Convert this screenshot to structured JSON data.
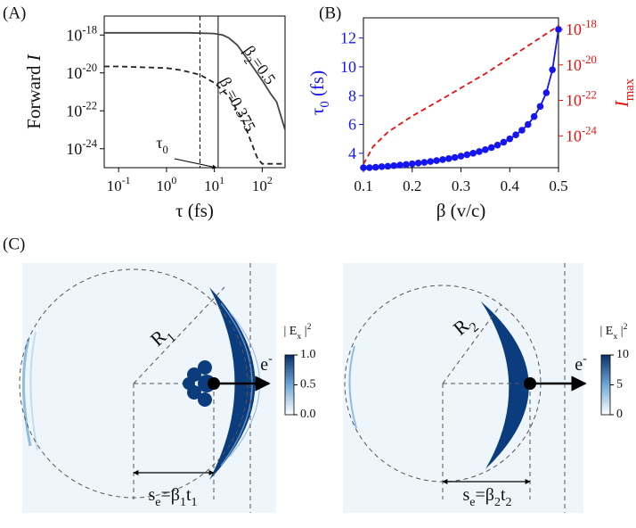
{
  "chart_data": [
    {
      "type": "line",
      "panel_label": "(A)",
      "xlabel": {
        "parts": [
          {
            "text": "τ (fs)"
          }
        ]
      },
      "ylabel": {
        "parts": [
          {
            "text": "Forward "
          },
          {
            "text": "I",
            "pos": "italic"
          }
        ]
      },
      "xscale": "log",
      "yscale": "log",
      "xlim": [
        0.05,
        300
      ],
      "ylim": [
        1e-25,
        1e-17
      ],
      "xticks": [
        {
          "value": 0.1,
          "label": "10-1"
        },
        {
          "value": 1,
          "label": "100"
        },
        {
          "value": 10,
          "label": "101"
        },
        {
          "value": 100,
          "label": "102"
        }
      ],
      "yticks": [
        {
          "value": 1e-24,
          "label": "10-24"
        },
        {
          "value": 1e-22,
          "label": "10-22"
        },
        {
          "value": 1e-20,
          "label": "10-20"
        },
        {
          "value": 1e-18,
          "label": "10-18"
        }
      ],
      "series": [
        {
          "color": "#444444",
          "dash": "solid",
          "x": [
            0.05,
            0.1,
            1,
            3,
            10,
            15,
            20,
            30,
            50,
            100,
            150,
            200,
            300
          ],
          "values": [
            1.3e-18,
            1.3e-18,
            1.3e-18,
            1.3e-18,
            1.2e-18,
            1e-18,
            7e-19,
            3e-19,
            5e-20,
            4e-21,
            8e-22,
            3e-22,
            1e-23
          ]
        },
        {
          "color": "#222222",
          "dash": "dashed",
          "x": [
            0.05,
            0.1,
            1,
            2,
            5,
            10,
            20,
            40,
            60,
            80,
            100,
            150,
            300
          ],
          "values": [
            2.2e-20,
            2.2e-20,
            1.8e-20,
            1.4e-20,
            8e-21,
            3e-21,
            6e-22,
            3e-23,
            2e-24,
            3e-25,
            1.6e-25,
            1.6e-25,
            1.6e-25
          ]
        }
      ],
      "vlines": [
        {
          "x": 5,
          "dash": "dashed"
        },
        {
          "x": 12,
          "dash": "solid"
        }
      ],
      "annotations": [
        {
          "parts": [
            {
              "text": "β"
            },
            {
              "text": "2",
              "pos": "sub"
            },
            {
              "text": "=0.5"
            }
          ]
        },
        {
          "parts": [
            {
              "text": "β"
            },
            {
              "text": "1",
              "pos": "sub"
            },
            {
              "text": "=0.375"
            }
          ]
        },
        {
          "parts": [
            {
              "text": "τ"
            },
            {
              "text": "0",
              "pos": "sub"
            }
          ]
        }
      ]
    },
    {
      "type": "line",
      "panel_label": "(B)",
      "xlabel": {
        "parts": [
          {
            "text": "β (v/c)"
          }
        ]
      },
      "ylabel": {
        "parts": [
          {
            "text": "τ"
          },
          {
            "text": "0",
            "pos": "sub"
          },
          {
            "text": " (fs)"
          }
        ]
      },
      "y2label": {
        "parts": [
          {
            "text": "I",
            "pos": "italic"
          },
          {
            "text": "max",
            "pos": "sub"
          }
        ]
      },
      "xscale": "linear",
      "yscale": "linear",
      "y2scale": "log",
      "ycolor": "#1515f0",
      "y2color": "#e81010",
      "xlim": [
        0.1,
        0.5
      ],
      "ylim": [
        3,
        13.4
      ],
      "y2lim": [
        1.6e-26,
        4.5e-18
      ],
      "xticks": [
        0.1,
        0.2,
        0.3,
        0.4,
        0.5
      ],
      "yticks": [
        4,
        6,
        8,
        10,
        12
      ],
      "y2ticks": [
        {
          "value": 1e-24,
          "label": "10-24"
        },
        {
          "value": 1e-22,
          "label": "10-22"
        },
        {
          "value": 1e-20,
          "label": "10-20"
        },
        {
          "value": 1e-18,
          "label": "10-18"
        }
      ],
      "series": [
        {
          "color": "#1515f0",
          "dash": "solid",
          "marker": "o",
          "axis": "y",
          "x": [
            0.1,
            0.1125,
            0.125,
            0.1375,
            0.15,
            0.1625,
            0.175,
            0.1875,
            0.2,
            0.2125,
            0.225,
            0.2375,
            0.25,
            0.2625,
            0.275,
            0.2875,
            0.3,
            0.3125,
            0.325,
            0.3375,
            0.35,
            0.3625,
            0.375,
            0.3875,
            0.4,
            0.4125,
            0.425,
            0.4375,
            0.45,
            0.4625,
            0.475,
            0.4875,
            0.5
          ],
          "values": [
            3.0,
            3.0,
            3.03,
            3.07,
            3.1,
            3.14,
            3.18,
            3.22,
            3.27,
            3.32,
            3.37,
            3.43,
            3.49,
            3.56,
            3.63,
            3.71,
            3.8,
            3.9,
            4.0,
            4.12,
            4.25,
            4.4,
            4.57,
            4.77,
            5.0,
            5.28,
            5.6,
            6.0,
            6.55,
            7.25,
            8.2,
            9.8,
            12.6
          ]
        },
        {
          "color": "#e81010",
          "dash": "dashed",
          "axis": "y2",
          "x": [
            0.1,
            0.12,
            0.15,
            0.2,
            0.25,
            0.3,
            0.35,
            0.4,
            0.45,
            0.5
          ],
          "values": [
            2.5e-26,
            2.5e-25,
            1.6e-24,
            1.3e-23,
            7.9e-23,
            5e-22,
            3.2e-21,
            2.5e-20,
            2e-19,
            1.6e-18
          ]
        }
      ]
    }
  ],
  "panel_c": {
    "label": "(C)",
    "images": [
      {
        "radius_label": {
          "parts": [
            {
              "text": "R"
            },
            {
              "text": "1",
              "pos": "sub"
            }
          ]
        },
        "electron": {
          "parts": [
            {
              "text": "e"
            },
            {
              "text": "-",
              "pos": "super"
            }
          ]
        },
        "distance_label": {
          "parts": [
            {
              "text": "s"
            },
            {
              "text": "e",
              "pos": "sub"
            },
            {
              "text": "=β"
            },
            {
              "text": "1",
              "pos": "sub"
            },
            {
              "text": "t"
            },
            {
              "text": "1",
              "pos": "sub"
            }
          ]
        },
        "colorbar": {
          "title": {
            "parts": [
              {
                "text": "| E"
              },
              {
                "text": "x",
                "pos": "sub"
              },
              {
                "text": " |"
              },
              {
                "text": "2",
                "pos": "super"
              }
            ]
          },
          "lim": [
            0,
            1
          ],
          "ticks": [
            {
              "value": 0,
              "label": "0.0"
            },
            {
              "value": 0.5,
              "label": "0.5"
            },
            {
              "value": 1,
              "label": "1.0"
            }
          ]
        }
      },
      {
        "radius_label": {
          "parts": [
            {
              "text": "R"
            },
            {
              "text": "2",
              "pos": "sub"
            }
          ]
        },
        "electron": {
          "parts": [
            {
              "text": "e"
            },
            {
              "text": "-",
              "pos": "super"
            }
          ]
        },
        "distance_label": {
          "parts": [
            {
              "text": "s"
            },
            {
              "text": "e",
              "pos": "sub"
            },
            {
              "text": "=β"
            },
            {
              "text": "2",
              "pos": "sub"
            },
            {
              "text": "t"
            },
            {
              "text": "2",
              "pos": "sub"
            }
          ]
        },
        "colorbar": {
          "title": {
            "parts": [
              {
                "text": "| E"
              },
              {
                "text": "x",
                "pos": "sub"
              },
              {
                "text": " |"
              },
              {
                "text": "2",
                "pos": "super"
              }
            ]
          },
          "lim": [
            0,
            10
          ],
          "ticks": [
            0,
            5,
            10
          ]
        }
      }
    ]
  }
}
